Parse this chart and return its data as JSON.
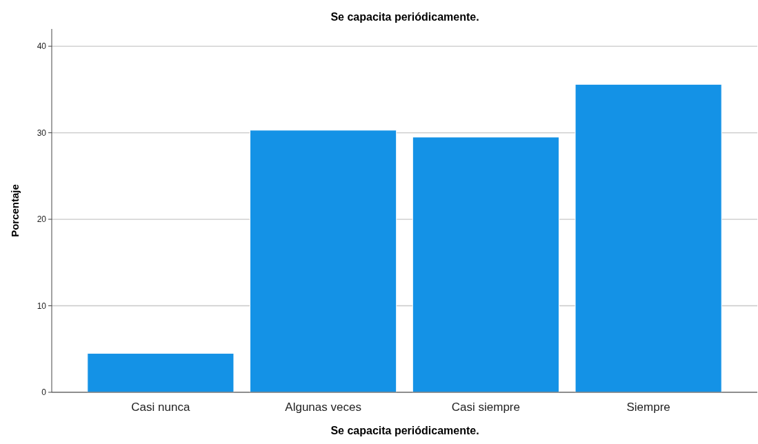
{
  "chart_data": {
    "type": "bar",
    "title": "Se capacita periódicamente.",
    "xlabel": "Se capacita periódicamente.",
    "ylabel": "Porcentaje",
    "categories": [
      "Casi nunca",
      "Algunas veces",
      "Casi siempre",
      "Siempre"
    ],
    "values": [
      4.5,
      30.3,
      29.5,
      35.6
    ],
    "color": "#1492e6",
    "ylim": [
      0,
      42
    ],
    "yticks": [
      0,
      10,
      20,
      30,
      40
    ],
    "grid": "y"
  }
}
